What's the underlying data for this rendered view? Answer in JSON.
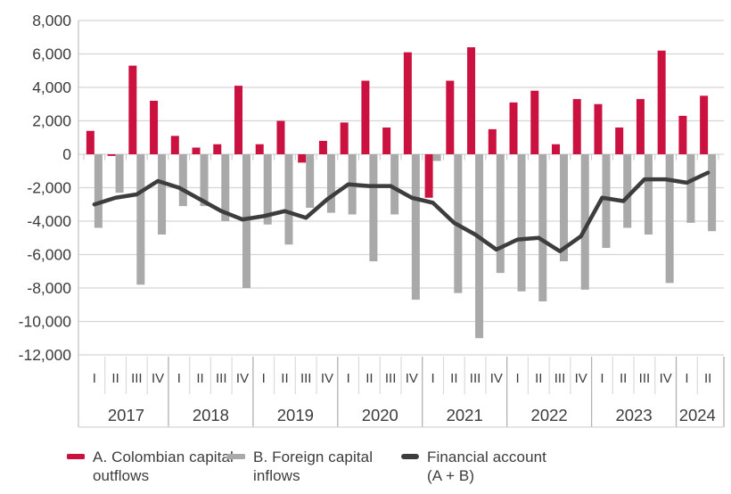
{
  "chart_data": {
    "type": "bar",
    "subtype": "grouped bars with overlay line",
    "title": "",
    "grid": "horizontal",
    "legend_position": "bottom",
    "ylim": [
      -12000,
      8000
    ],
    "ytick_interval": 2000,
    "y_ticks": [
      8000,
      6000,
      4000,
      2000,
      0,
      -2000,
      -4000,
      -6000,
      -8000,
      -10000,
      -12000
    ],
    "y_tick_labels": [
      "8,000",
      "6,000",
      "4,000",
      "2,000",
      "0",
      "-2,000",
      "-4,000",
      "-6,000",
      "-8,000",
      "-10,000",
      "-12,000"
    ],
    "quarters": [
      "I",
      "II",
      "III",
      "IV",
      "I",
      "II",
      "III",
      "IV",
      "I",
      "II",
      "III",
      "IV",
      "I",
      "II",
      "III",
      "IV",
      "I",
      "II",
      "III",
      "IV",
      "I",
      "II",
      "III",
      "IV",
      "I",
      "II",
      "III",
      "IV",
      "I",
      "II"
    ],
    "years": [
      {
        "label": "2017",
        "quarters": 4
      },
      {
        "label": "2018",
        "quarters": 4
      },
      {
        "label": "2019",
        "quarters": 4
      },
      {
        "label": "2020",
        "quarters": 4
      },
      {
        "label": "2021",
        "quarters": 4
      },
      {
        "label": "2022",
        "quarters": 4
      },
      {
        "label": "2023",
        "quarters": 4
      },
      {
        "label": "2024",
        "quarters": 2
      }
    ],
    "series": [
      {
        "name": "A. Colombian capital outflows",
        "type": "bar",
        "color": "#CB1140",
        "values": [
          1400,
          -100,
          5300,
          3200,
          1100,
          400,
          600,
          4100,
          600,
          2000,
          -500,
          800,
          1900,
          4400,
          1600,
          6100,
          -2600,
          4400,
          6400,
          1500,
          3100,
          3800,
          600,
          3300,
          3000,
          1600,
          3300,
          6200,
          2300,
          3500
        ]
      },
      {
        "name": "B. Foreign capital inflows",
        "type": "bar",
        "color": "#A9A9A9",
        "values": [
          -4400,
          -2300,
          -7800,
          -4800,
          -3100,
          -3100,
          -4000,
          -8000,
          -4200,
          -5400,
          -3200,
          -3500,
          -3600,
          -6400,
          -3600,
          -8700,
          -400,
          -8300,
          -11000,
          -7100,
          -8200,
          -8800,
          -6400,
          -8100,
          -5600,
          -4400,
          -4800,
          -7700,
          -4100,
          -4600
        ]
      },
      {
        "name": "Financial account (A + B)",
        "type": "line",
        "color": "#3E3C3C",
        "values": [
          -3000,
          -2600,
          -2400,
          -1600,
          -2000,
          -2700,
          -3400,
          -3900,
          -3700,
          -3400,
          -3800,
          -2700,
          -1800,
          -1900,
          -1900,
          -2600,
          -2900,
          -4100,
          -4800,
          -5700,
          -5100,
          -5000,
          -5800,
          -4900,
          -2600,
          -2800,
          -1500,
          -1500,
          -1700,
          -1100
        ]
      }
    ],
    "axis_colors": {
      "grid_line": "#D6D4D4",
      "axis_line": "#C6C4C4",
      "year_separator": "#B3B1B1",
      "quarter_separator": "#DCDADA",
      "tick_text": "#3C3C3B"
    }
  },
  "legend": {
    "items": [
      {
        "label": "A. Colombian capital outflows",
        "swatch": "red-bar"
      },
      {
        "label": "B. Foreign capital inflows",
        "swatch": "gray-bar"
      },
      {
        "label": "Financial account (A + B)",
        "swatch": "dark-line"
      }
    ]
  }
}
